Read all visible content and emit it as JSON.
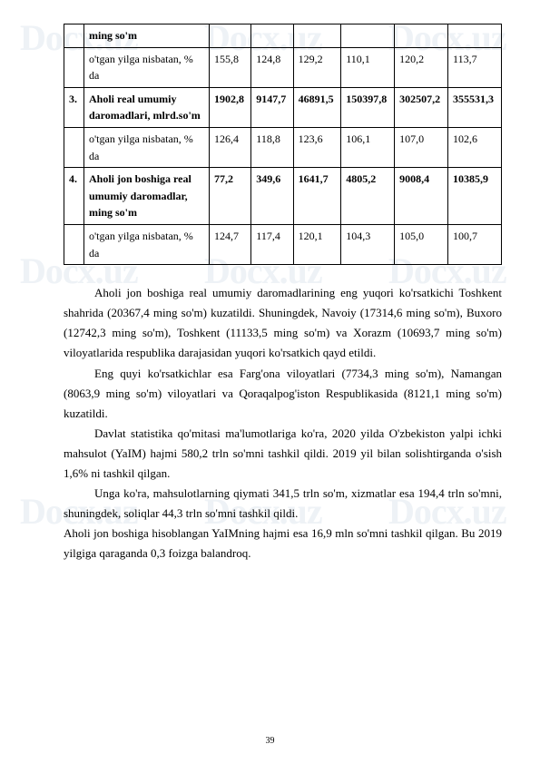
{
  "watermark": "Docx.uz",
  "table": {
    "rows": [
      {
        "num": "",
        "label": "ming so'm",
        "bold": true,
        "c": [
          "",
          "",
          "",
          "",
          "",
          ""
        ]
      },
      {
        "num": "",
        "label": "o'tgan yilga nisbatan, % da",
        "bold": false,
        "c": [
          "155,8",
          "124,8",
          "129,2",
          "110,1",
          "120,2",
          "113,7"
        ]
      },
      {
        "num": "3.",
        "label": "Aholi real umumiy daromadlari, mlrd.so'm",
        "bold": true,
        "c": [
          "1902,8",
          "9147,7",
          "46891,5",
          "150397,8",
          "302507,2",
          "355531,3"
        ]
      },
      {
        "num": "",
        "label": "o'tgan yilga nisbatan, % da",
        "bold": false,
        "c": [
          "126,4",
          "118,8",
          "123,6",
          "106,1",
          "107,0",
          "102,6"
        ]
      },
      {
        "num": "4.",
        "label": "Aholi jon boshiga real umumiy daromadlar, ming so'm",
        "bold": true,
        "c": [
          "77,2",
          "349,6",
          "1641,7",
          "4805,2",
          "9008,4",
          "10385,9"
        ]
      },
      {
        "num": "",
        "label": "o'tgan yilga nisbatan, % da",
        "bold": false,
        "c": [
          "124,7",
          "117,4",
          "120,1",
          "104,3",
          "105,0",
          "100,7"
        ]
      }
    ]
  },
  "paras": {
    "p1": "Aholi jon boshiga real umumiy daromadlarining eng yuqori ko'rsatkichi Toshkent shahrida (20367,4 ming so'm) kuzatildi. Shuningdek, Navoiy (17314,6 ming so'm), Buxoro (12742,3 ming so'm), Toshkent (11133,5 ming so'm) va Xorazm (10693,7 ming so'm) viloyatlarida respublika darajasidan yuqori ko'rsatkich qayd etildi.",
    "p2": "Eng quyi ko'rsatkichlar esa Farg'ona viloyatlari (7734,3 ming so'm), Namangan (8063,9 ming so'm) viloyatlari va Qoraqalpog'iston Respublikasida (8121,1 ming so'm) kuzatildi.",
    "p3": "Davlat statistika qo'mitasi ma'lumotlariga ko'ra, 2020 yilda O'zbekiston yalpi ichki mahsulot (YaIM) hajmi 580,2 trln so'mni tashkil qildi. 2019 yil bilan solishtirganda o'sish 1,6% ni tashkil qilgan.",
    "p4": "Unga ko'ra, mahsulotlarning qiymati 341,5 trln so'm, xizmatlar esa 194,4 trln so'mni, shuningdek, soliqlar 44,3 trln so'mni tashkil qildi.",
    "p5": "Aholi jon boshiga hisoblangan YaIMning hajmi esa 16,9 mln so'mni tashkil qilgan. Bu 2019 yilgiga qaraganda 0,3 foizga balandroq."
  },
  "pageNumber": "39"
}
